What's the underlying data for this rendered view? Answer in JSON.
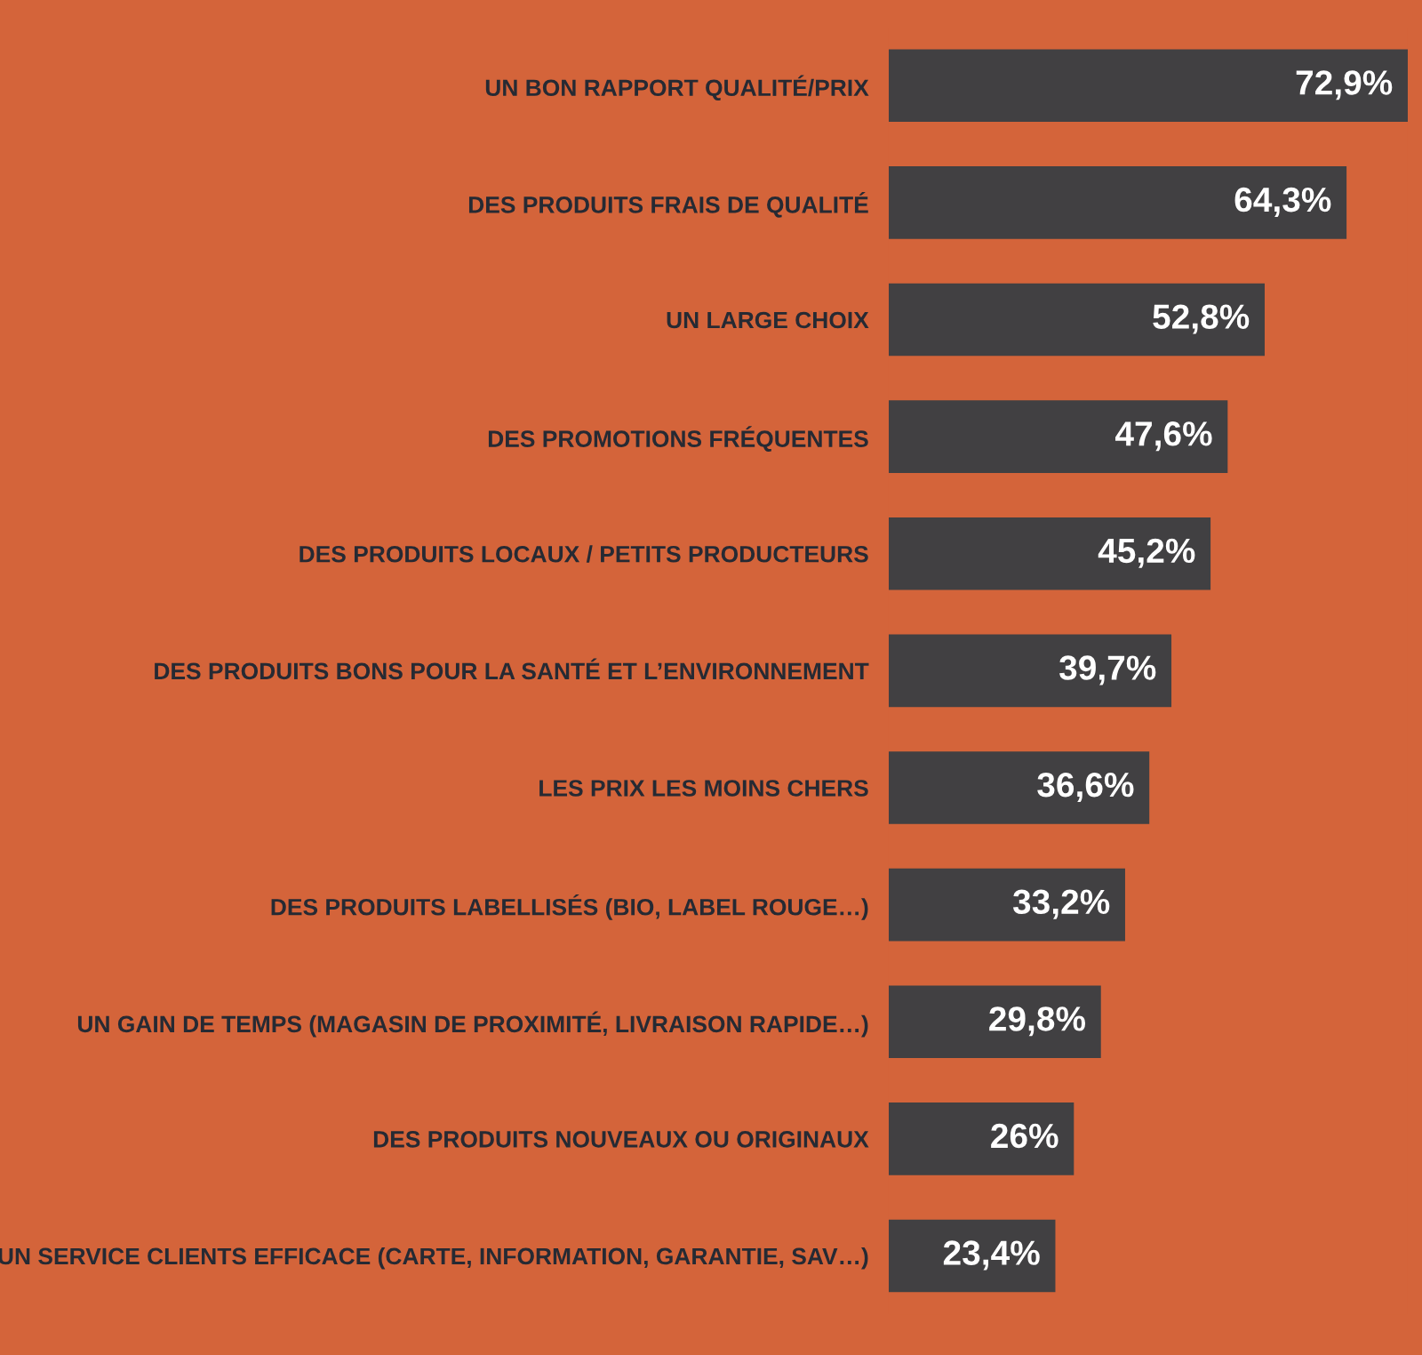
{
  "chart_data": {
    "type": "bar",
    "orientation": "horizontal",
    "tick_labels": "y",
    "categories": [
      "UN BON RAPPORT QUALITÉ/PRIX",
      "DES PRODUITS FRAIS DE QUALITÉ",
      "UN LARGE CHOIX",
      "DES PROMOTIONS FRÉQUENTES",
      "DES PRODUITS LOCAUX / PETITS PRODUCTEURS",
      "DES PRODUITS BONS POUR LA SANTÉ ET L’ENVIRONNEMENT",
      "LES PRIX LES MOINS CHERS",
      "DES PRODUITS LABELLISÉS (BIO, LABEL ROUGE…)",
      "UN GAIN DE TEMPS (MAGASIN DE PROXIMITÉ, LIVRAISON RAPIDE…)",
      "DES PRODUITS NOUVEAUX OU ORIGINAUX",
      "UN SERVICE CLIENTS EFFICACE (CARTE, INFORMATION, GARANTIE, SAV…)"
    ],
    "values": [
      72.9,
      64.3,
      52.8,
      47.6,
      45.2,
      39.7,
      36.6,
      33.2,
      29.8,
      26,
      23.4
    ],
    "value_labels": [
      "72,9%",
      "64,3%",
      "52,8%",
      "47,6%",
      "45,2%",
      "39,7%",
      "36,6%",
      "33,2%",
      "29,8%",
      "26%",
      "23,4%"
    ],
    "color": "#414042"
  }
}
